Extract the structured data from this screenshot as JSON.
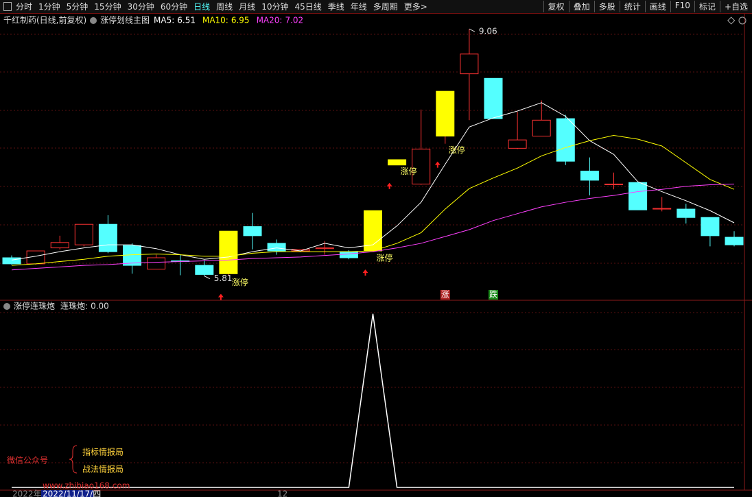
{
  "toolbar": {
    "left": [
      "分时",
      "1分钟",
      "5分钟",
      "15分钟",
      "30分钟",
      "60分钟",
      "日线",
      "周线",
      "月线",
      "10分钟",
      "45日线",
      "季线",
      "年线",
      "多周期",
      "更多>"
    ],
    "active_index": 6,
    "right": [
      "复权",
      "叠加",
      "多股",
      "统计",
      "画线",
      "F10",
      "标记",
      "+自选"
    ]
  },
  "stock_title": "千红制药(日线,前复权)",
  "chart_data": [
    {
      "type": "candlestick",
      "title": "涨停划线主图",
      "open": [
        6.05,
        5.97,
        6.18,
        6.22,
        6.49,
        6.21,
        5.9,
        6.01,
        5.95,
        5.84,
        6.46,
        6.24,
        6.14,
        6.17,
        6.13,
        6.14,
        7.27,
        7.02,
        7.65,
        8.47,
        8.41,
        7.49,
        7.65,
        7.88,
        7.19,
        7.01,
        7.04,
        6.69,
        6.69,
        6.58,
        6.32
      ],
      "high": [
        6.08,
        6.14,
        6.34,
        6.49,
        6.61,
        6.24,
        6.09,
        6.09,
        6.02,
        6.4,
        6.64,
        6.29,
        6.16,
        6.27,
        6.15,
        6.67,
        7.34,
        8.0,
        8.24,
        9.06,
        8.41,
        7.97,
        8.12,
        7.93,
        7.37,
        7.17,
        7.04,
        6.85,
        6.76,
        6.58,
        6.4
      ],
      "low": [
        5.96,
        5.96,
        6.16,
        6.2,
        6.11,
        5.84,
        5.9,
        5.82,
        5.81,
        5.81,
        6.16,
        6.09,
        6.14,
        6.09,
        6.03,
        6.13,
        7.27,
        7.01,
        7.55,
        7.86,
        7.88,
        7.48,
        7.65,
        7.27,
        6.87,
        6.95,
        6.68,
        6.66,
        6.5,
        6.2,
        6.2
      ],
      "close": [
        5.97,
        6.14,
        6.25,
        6.49,
        6.13,
        5.95,
        6.05,
        6.0,
        5.83,
        6.4,
        6.34,
        6.14,
        6.16,
        6.18,
        6.05,
        6.67,
        7.34,
        7.48,
        8.24,
        8.73,
        7.88,
        7.6,
        7.86,
        7.32,
        7.07,
        7.02,
        6.68,
        6.7,
        6.58,
        6.34,
        6.22
      ],
      "up_color": "#ff3232",
      "down_color": "#54ffff",
      "limit_up_color": "#ffff00",
      "ylim": [
        5.5,
        9.08
      ],
      "series": [
        {
          "label": "MA5:",
          "color": "#ffffff",
          "values": [
            6.02,
            6.07,
            6.13,
            6.18,
            6.22,
            6.22,
            6.17,
            6.09,
            6.03,
            6.06,
            6.13,
            6.18,
            6.14,
            6.24,
            6.18,
            6.22,
            6.47,
            6.78,
            7.28,
            7.77,
            7.89,
            7.98,
            8.09,
            7.91,
            7.59,
            7.41,
            7.05,
            6.92,
            6.8,
            6.67,
            6.51
          ]
        },
        {
          "label": "MA10:",
          "color": "#ffff00",
          "values": [
            5.95,
            5.97,
            6.0,
            6.03,
            6.07,
            6.09,
            6.1,
            6.09,
            6.07,
            6.07,
            6.11,
            6.13,
            6.13,
            6.13,
            6.13,
            6.14,
            6.24,
            6.38,
            6.69,
            6.96,
            7.1,
            7.23,
            7.39,
            7.5,
            7.59,
            7.66,
            7.61,
            7.52,
            7.3,
            7.08,
            6.95
          ]
        },
        {
          "label": "MA20:",
          "color": "#ff40ff",
          "values": [
            5.89,
            5.91,
            5.93,
            5.95,
            5.96,
            5.98,
            5.99,
            6.0,
            6.01,
            6.02,
            6.04,
            6.05,
            6.06,
            6.08,
            6.1,
            6.13,
            6.18,
            6.24,
            6.33,
            6.42,
            6.54,
            6.63,
            6.72,
            6.78,
            6.83,
            6.87,
            6.92,
            6.95,
            6.99,
            7.01,
            7.02
          ]
        }
      ],
      "annotations": [
        {
          "index": 9,
          "text": "涨停"
        },
        {
          "index": 15,
          "text": "涨停"
        },
        {
          "index": 16,
          "text": "涨停"
        },
        {
          "index": 18,
          "text": "涨停"
        }
      ],
      "markers": [
        {
          "index": 18,
          "text": "涨",
          "color": "#b02020"
        },
        {
          "index": 20,
          "text": "跌",
          "color": "#1a8a1a"
        }
      ]
    },
    {
      "type": "line",
      "title": "涨停连珠炮",
      "ylim": [
        0,
        1.07
      ],
      "series": [
        {
          "label": "连珠炮:",
          "color": "#ffffff",
          "values": [
            0,
            0,
            0,
            0,
            0,
            0,
            0,
            0,
            0,
            0,
            0,
            0,
            0,
            0,
            0,
            1,
            0,
            0,
            0,
            0,
            0,
            0,
            0,
            0,
            0,
            0,
            0,
            0,
            0,
            0,
            0
          ],
          "value_labels": [
            null,
            null,
            null,
            null,
            null,
            null,
            null,
            null,
            null,
            null,
            null,
            null,
            null,
            null,
            null,
            null,
            null,
            null,
            null,
            null,
            null,
            null,
            null,
            null,
            null,
            null,
            null,
            null,
            null,
            null,
            "0.00"
          ]
        }
      ]
    }
  ],
  "footer": {
    "year": "2022年",
    "date": "2022/11/17/四",
    "month": "12"
  },
  "watermark": {
    "left": "微信公众号",
    "lines": [
      "指标情报局",
      "战法情报局"
    ],
    "url": "www.zhibiao168.com"
  }
}
